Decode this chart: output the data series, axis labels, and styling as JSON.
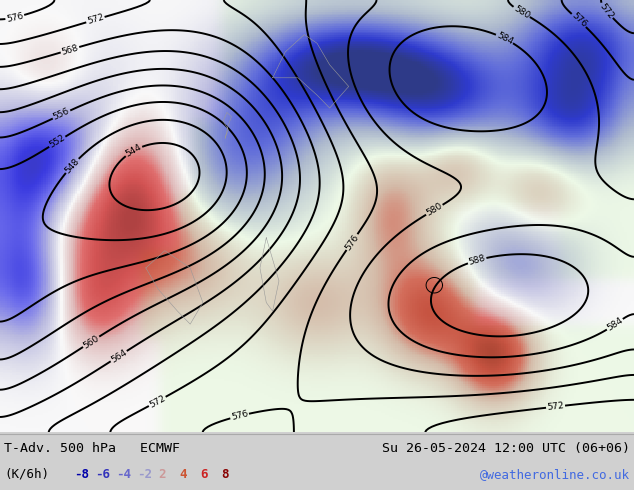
{
  "title_left": "T-Adv. 500 hPa   ECMWF",
  "title_right": "Su 26-05-2024 12:00 UTC (06+06)",
  "unit_label": "(K/6h)",
  "legend_values": [
    -8,
    -6,
    -4,
    -2,
    2,
    4,
    6,
    8
  ],
  "legend_colors_neg": [
    "#0000b0",
    "#3333cc",
    "#6666cc",
    "#9999cc"
  ],
  "legend_colors_pos": [
    "#cc9999",
    "#cc6633",
    "#cc3333",
    "#990000"
  ],
  "watermark": "@weatheronline.co.uk",
  "watermark_color": "#4169e1",
  "fig_width": 6.34,
  "fig_height": 4.9,
  "dpi": 100,
  "bottom_bar_color": "#d0d0d0",
  "ocean_color": "#e8e8e8",
  "land_color": "#b8e8a0",
  "contour_color": "#000000",
  "geo_border_color": "#999999"
}
